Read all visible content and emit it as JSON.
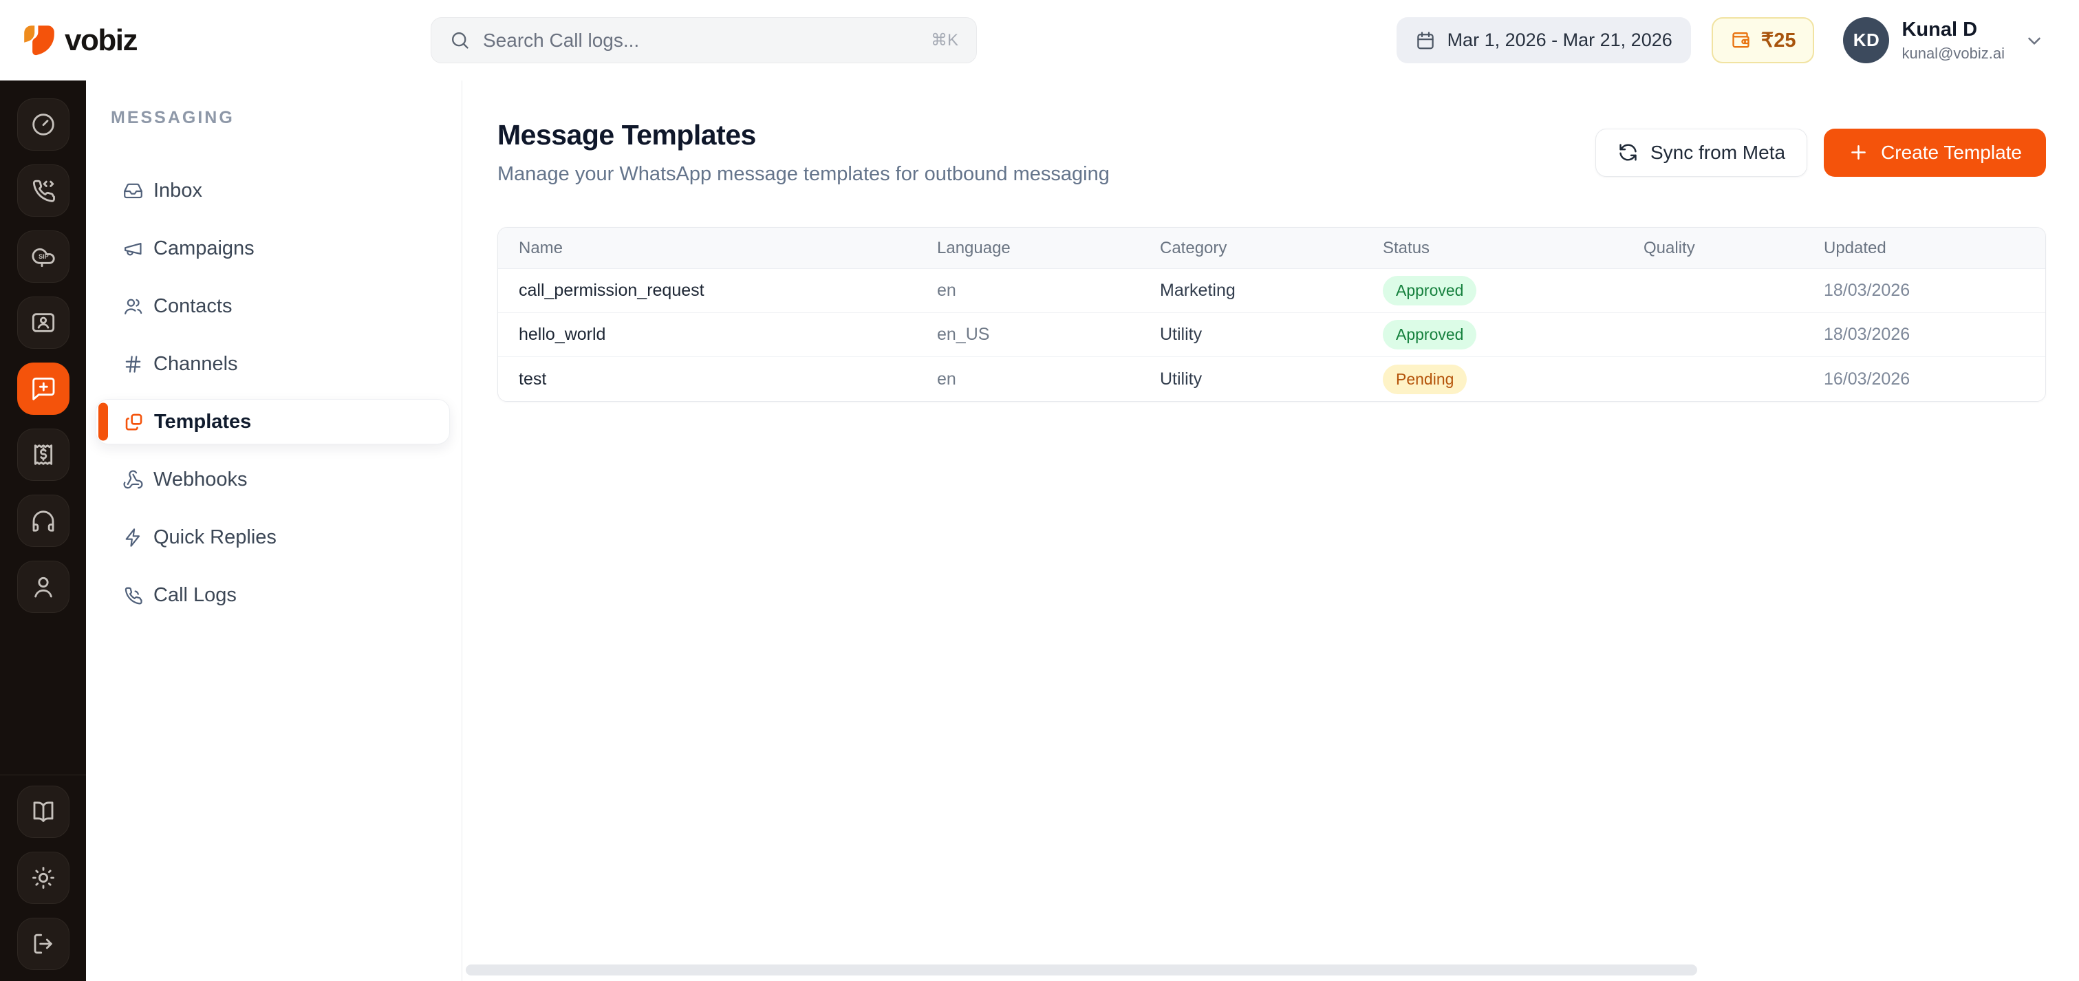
{
  "topbar": {
    "brand": "vobiz",
    "search": {
      "placeholder": "Search Call logs...",
      "shortcut": "⌘K"
    },
    "date_range": "Mar 1, 2026 - Mar 21, 2026",
    "balance": "₹25",
    "user": {
      "initials": "KD",
      "name": "Kunal D",
      "email": "kunal@vobiz.ai"
    }
  },
  "rail": {
    "items": [
      {
        "name": "dashboard",
        "icon": "gauge",
        "active": false
      },
      {
        "name": "voice",
        "icon": "phone-code",
        "active": false
      },
      {
        "name": "sip",
        "icon": "sip-cloud",
        "icon_text": "SIP",
        "active": false
      },
      {
        "name": "contacts",
        "icon": "contact-card",
        "active": false
      },
      {
        "name": "messaging",
        "icon": "chat-plus",
        "active": true
      },
      {
        "name": "billing",
        "icon": "receipt",
        "active": false
      },
      {
        "name": "support",
        "icon": "headphones",
        "active": false
      },
      {
        "name": "account",
        "icon": "user",
        "active": false
      }
    ],
    "footer_items": [
      {
        "name": "docs",
        "icon": "book"
      },
      {
        "name": "theme",
        "icon": "sun"
      },
      {
        "name": "logout",
        "icon": "logout"
      }
    ]
  },
  "sidebar": {
    "section": "MESSAGING",
    "items": [
      {
        "label": "Inbox",
        "icon": "inbox",
        "active": false
      },
      {
        "label": "Campaigns",
        "icon": "megaphone",
        "active": false
      },
      {
        "label": "Contacts",
        "icon": "users",
        "active": false
      },
      {
        "label": "Channels",
        "icon": "hash",
        "active": false
      },
      {
        "label": "Templates",
        "icon": "copy",
        "active": true
      },
      {
        "label": "Webhooks",
        "icon": "webhook",
        "active": false
      },
      {
        "label": "Quick Replies",
        "icon": "zap",
        "active": false
      },
      {
        "label": "Call Logs",
        "icon": "phone",
        "active": false
      }
    ]
  },
  "main": {
    "title": "Message Templates",
    "subtitle": "Manage your WhatsApp message templates for outbound messaging",
    "sync_button": "Sync from Meta",
    "create_button": "Create Template",
    "table": {
      "columns": [
        "Name",
        "Language",
        "Category",
        "Status",
        "Quality",
        "Updated"
      ],
      "rows": [
        {
          "name": "call_permission_request",
          "language": "en",
          "category": "Marketing",
          "status": "Approved",
          "quality": "",
          "updated": "18/03/2026"
        },
        {
          "name": "hello_world",
          "language": "en_US",
          "category": "Utility",
          "status": "Approved",
          "quality": "",
          "updated": "18/03/2026"
        },
        {
          "name": "test",
          "language": "en",
          "category": "Utility",
          "status": "Pending",
          "quality": "",
          "updated": "16/03/2026"
        }
      ]
    }
  },
  "colors": {
    "accent": "#f4530b",
    "logo_amber": "#ee8b1d",
    "rail_bg": "#16100d",
    "avatar_bg": "#3c4a5d",
    "approved_bg": "#dcfce7",
    "approved_text": "#15803d",
    "pending_bg": "#fef3c7",
    "pending_text": "#b45309"
  }
}
